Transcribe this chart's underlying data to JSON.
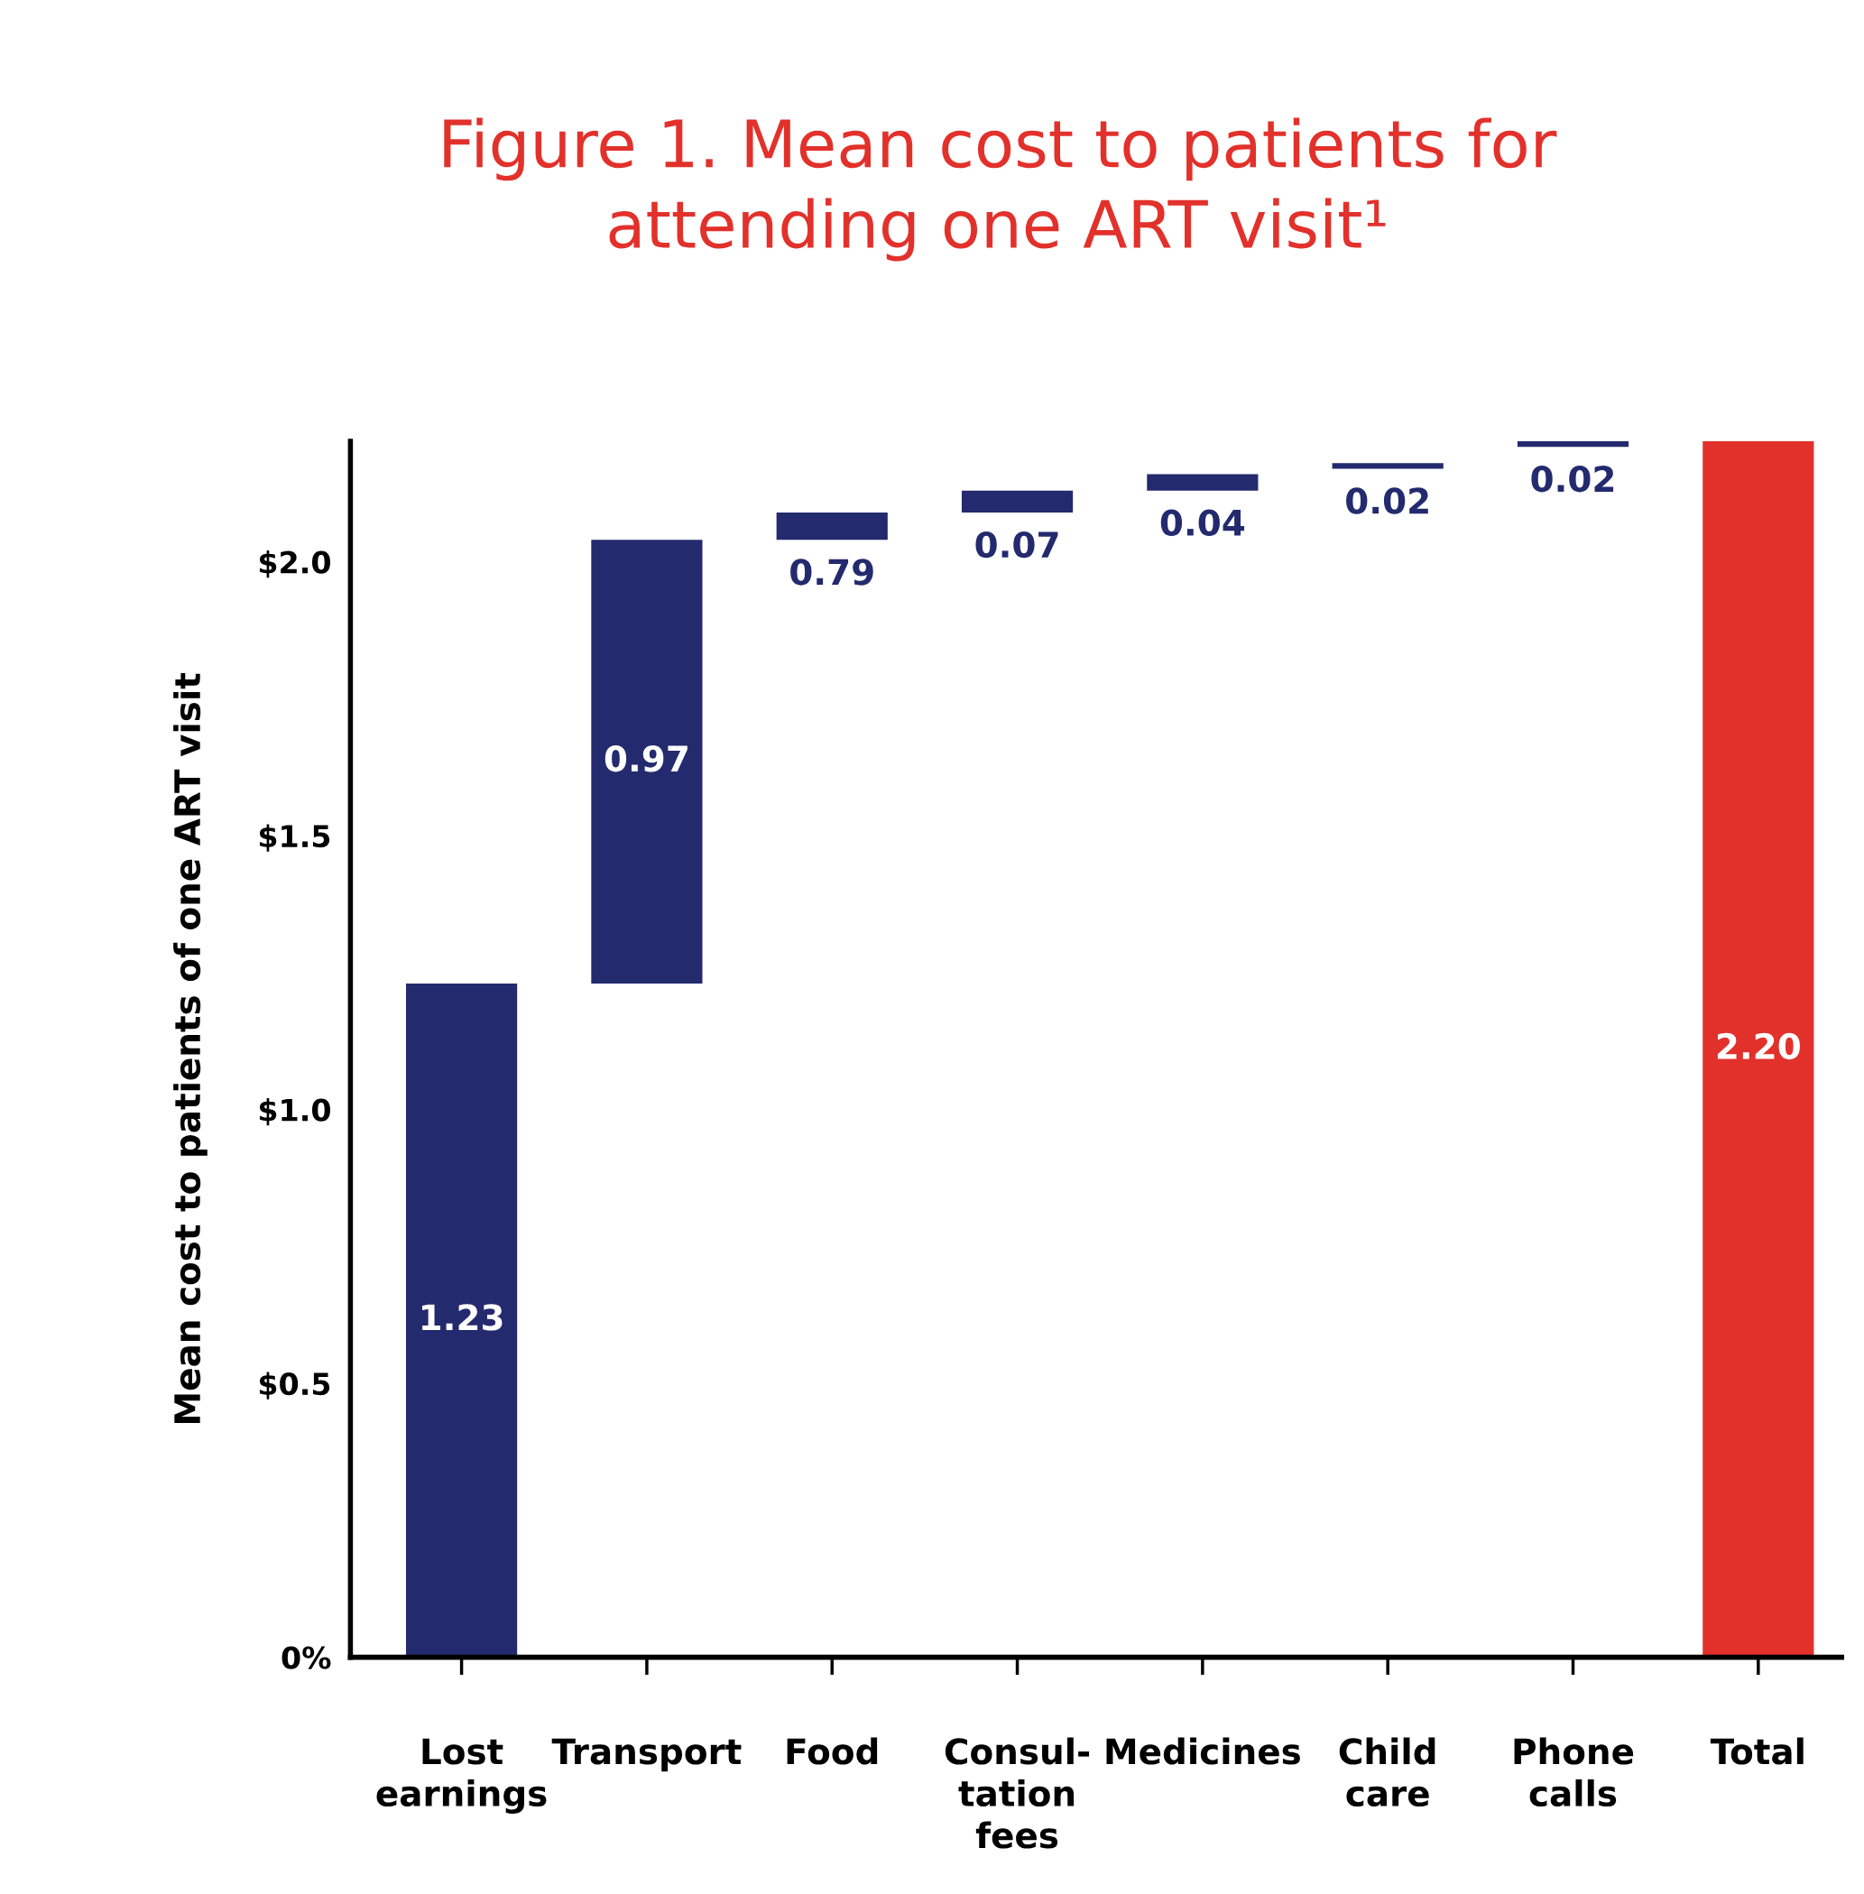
{
  "chart_data": {
    "type": "bar",
    "title": "Figure 1. Mean cost to patients for\nattending one ART visit¹",
    "ylabel": "Mean cost to patients of one ART visit",
    "categories": [
      "Lost\nearnings",
      "Transport",
      "Food",
      "Consul-\ntation\nfees",
      "Medicines",
      "Child\ncare",
      "Phone\ncalls",
      "Total"
    ],
    "values": [
      1.23,
      0.81,
      0.05,
      0.04,
      0.03,
      0.01,
      0.01,
      2.22
    ],
    "base": [
      0,
      1.23,
      2.04,
      2.09,
      2.13,
      2.17,
      2.21,
      0
    ],
    "colors": [
      "#232a6e",
      "#232a6e",
      "#232a6e",
      "#232a6e",
      "#232a6e",
      "#232a6e",
      "#232a6e",
      "#e2312b"
    ],
    "annotations": [
      "1.23",
      "0.97",
      "0.79",
      "0.07",
      "0.04",
      "0.02",
      "0.02",
      "2.20"
    ],
    "ylim": [
      0,
      2.22
    ],
    "yticks": [
      {
        "value": 0,
        "label": "0%"
      },
      {
        "value": 0.5,
        "label": "$0.5"
      },
      {
        "value": 1.0,
        "label": "$1.0"
      },
      {
        "value": 1.5,
        "label": "$1.5"
      },
      {
        "value": 2.0,
        "label": "$2.0"
      }
    ],
    "grid": false,
    "legend": false
  }
}
